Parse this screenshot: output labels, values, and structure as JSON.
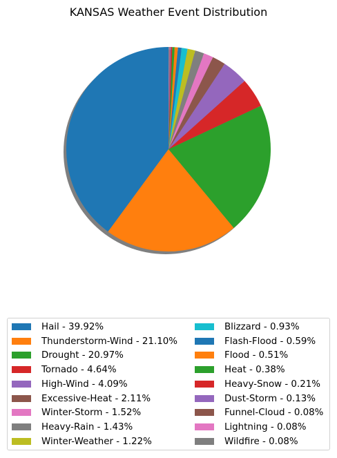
{
  "chart_data": {
    "type": "pie",
    "title": "KANSAS Weather Event Distribution",
    "start_angle_deg": 90,
    "direction": "counterclockwise",
    "shadow": true,
    "legend_placement": "bottom",
    "slices": [
      {
        "label": "Hail - 39.92%",
        "value": 39.92,
        "color": "#1f77b4"
      },
      {
        "label": "Thunderstorm-Wind - 21.10%",
        "value": 21.1,
        "color": "#ff7f0e"
      },
      {
        "label": "Drought - 20.97%",
        "value": 20.97,
        "color": "#2ca02c"
      },
      {
        "label": "Tornado - 4.64%",
        "value": 4.64,
        "color": "#d62728"
      },
      {
        "label": "High-Wind - 4.09%",
        "value": 4.09,
        "color": "#9467bd"
      },
      {
        "label": "Excessive-Heat - 2.11%",
        "value": 2.11,
        "color": "#8c564b"
      },
      {
        "label": "Winter-Storm - 1.52%",
        "value": 1.52,
        "color": "#e377c2"
      },
      {
        "label": "Heavy-Rain - 1.43%",
        "value": 1.43,
        "color": "#7f7f7f"
      },
      {
        "label": "Winter-Weather - 1.22%",
        "value": 1.22,
        "color": "#bcbd22"
      },
      {
        "label": "Blizzard - 0.93%",
        "value": 0.93,
        "color": "#17becf"
      },
      {
        "label": "Flash-Flood - 0.59%",
        "value": 0.59,
        "color": "#1f77b4"
      },
      {
        "label": "Flood - 0.51%",
        "value": 0.51,
        "color": "#ff7f0e"
      },
      {
        "label": "Heat - 0.38%",
        "value": 0.38,
        "color": "#2ca02c"
      },
      {
        "label": "Heavy-Snow - 0.21%",
        "value": 0.21,
        "color": "#d62728"
      },
      {
        "label": "Dust-Storm - 0.13%",
        "value": 0.13,
        "color": "#9467bd"
      },
      {
        "label": "Funnel-Cloud - 0.08%",
        "value": 0.08,
        "color": "#8c564b"
      },
      {
        "label": "Lightning - 0.08%",
        "value": 0.08,
        "color": "#e377c2"
      },
      {
        "label": "Wildfire - 0.08%",
        "value": 0.08,
        "color": "#7f7f7f"
      }
    ]
  }
}
